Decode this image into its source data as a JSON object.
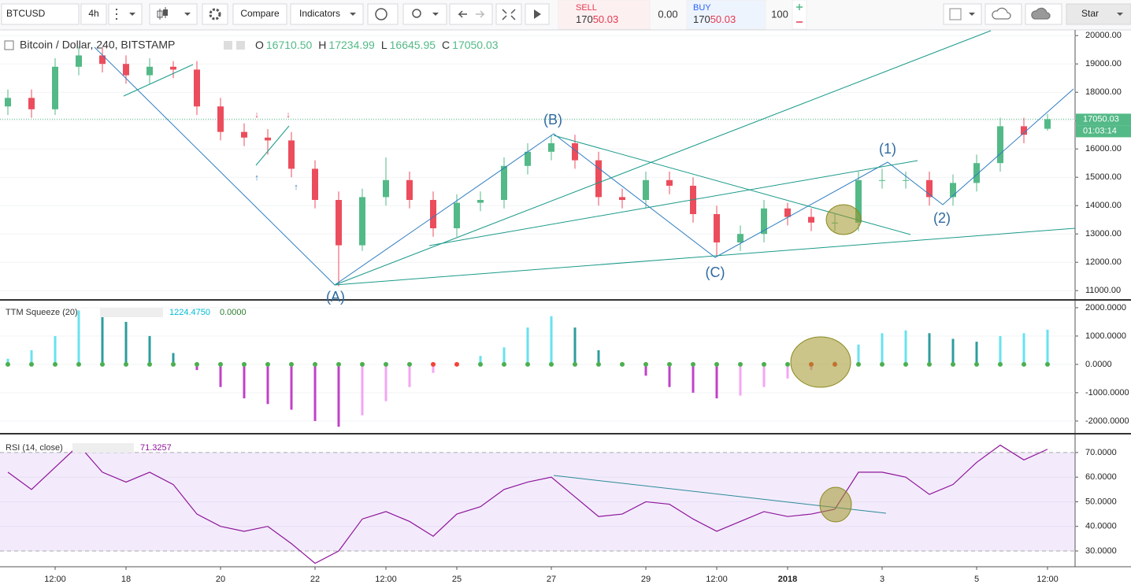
{
  "toolbar": {
    "symbol": "BTCUSD",
    "interval": "4h",
    "compare": "Compare",
    "indicators": "Indicators",
    "sell_label": "SELL",
    "sell_price": [
      "170",
      "50.03"
    ],
    "spread": "0.00",
    "buy_label": "BUY",
    "buy_price": [
      "170",
      "50.03"
    ],
    "quantity": "100",
    "star": "Star"
  },
  "chart_data": [
    {
      "type": "candlestick",
      "title": "Bitcoin / Dollar, 240, BITSTAMP",
      "ohlc_labels": [
        "O",
        "H",
        "L",
        "C"
      ],
      "ohlc_values": [
        "16710.50",
        "17234.99",
        "16645.95",
        "17050.03"
      ],
      "last_price_label": "17050.03",
      "countdown": "01:03:14",
      "annotations": [
        "(A)",
        "(B)",
        "(C)",
        "(1)",
        "(2)"
      ],
      "up_color": "#53b987",
      "down_color": "#eb4d5c",
      "open": [
        17500,
        17800,
        17400,
        18900,
        19300,
        19000,
        18600,
        18900,
        18800,
        17500,
        16600,
        16400,
        16300,
        15300,
        14200,
        12600,
        14300,
        14900,
        14200,
        13200,
        14100,
        14200,
        15400,
        15900,
        16200,
        15600,
        14300,
        14200,
        14900,
        14700,
        13700,
        12700,
        13000,
        13900,
        13600,
        13400,
        13400,
        14900,
        14900,
        14900,
        14300,
        14800,
        15500,
        16800,
        16710.5
      ],
      "high": [
        18100,
        18100,
        19200,
        19600,
        19600,
        19300,
        19200,
        19100,
        19100,
        17800,
        16900,
        16700,
        16600,
        15600,
        14500,
        14600,
        15700,
        15200,
        14500,
        14400,
        14500,
        15700,
        16200,
        16500,
        16500,
        15900,
        14600,
        15200,
        15200,
        15000,
        14000,
        13300,
        14200,
        14100,
        13900,
        13700,
        15200,
        15300,
        15200,
        15200,
        15100,
        15800,
        17100,
        17100,
        17234.99
      ],
      "low": [
        17200,
        17100,
        17200,
        18600,
        18700,
        18300,
        18300,
        18500,
        17200,
        16300,
        16100,
        15800,
        15000,
        13900,
        11150,
        12400,
        14000,
        13900,
        12900,
        12900,
        13800,
        13900,
        15100,
        15600,
        15300,
        14000,
        13900,
        13900,
        14400,
        13400,
        12200,
        12400,
        12700,
        13300,
        13100,
        13100,
        13100,
        14600,
        14600,
        14000,
        14000,
        14500,
        15200,
        16200,
        16645.95
      ],
      "close": [
        17800,
        17400,
        18900,
        19300,
        19000,
        18600,
        18900,
        18800,
        17500,
        16600,
        16400,
        16300,
        15300,
        14200,
        12600,
        14300,
        14900,
        14200,
        13200,
        14100,
        14200,
        15400,
        15900,
        16200,
        15600,
        14300,
        14200,
        14900,
        14700,
        13700,
        12700,
        13000,
        13900,
        13600,
        13400,
        13400,
        14900,
        14900,
        14900,
        14300,
        14800,
        15500,
        16800,
        16500,
        17050.03
      ],
      "ylim": [
        10700,
        20200
      ],
      "yticks": [
        {
          "value": 11000,
          "label": "11000.00"
        },
        {
          "value": 12000,
          "label": "12000.00"
        },
        {
          "value": 13000,
          "label": "13000.00"
        },
        {
          "value": 14000,
          "label": "14000.00"
        },
        {
          "value": 15000,
          "label": "15000.00"
        },
        {
          "value": 16000,
          "label": "16000.00"
        },
        {
          "value": 17000,
          "label": "17000.00"
        },
        {
          "value": 18000,
          "label": "18000.00"
        },
        {
          "value": 19000,
          "label": "19000.00"
        },
        {
          "value": 20000,
          "label": "20000.00"
        }
      ]
    },
    {
      "type": "histogram",
      "title": "TTM Squeeze (20)",
      "legend_values": [
        "1224.4750",
        "0.0000"
      ],
      "values": [
        200,
        500,
        1000,
        1900,
        1800,
        1500,
        1000,
        400,
        -200,
        -800,
        -1200,
        -1400,
        -1600,
        -2000,
        -2200,
        -1800,
        -1300,
        -800,
        -300,
        0,
        300,
        600,
        1300,
        1700,
        1300,
        500,
        0,
        -400,
        -800,
        -1000,
        -1200,
        -1100,
        -800,
        -500,
        -200,
        100,
        700,
        1100,
        1200,
        1100,
        900,
        800,
        1000,
        1100,
        1224.475
      ],
      "dot_colors": [
        "#4caf50",
        "#4caf50",
        "#4caf50",
        "#4caf50",
        "#4caf50",
        "#4caf50",
        "#4caf50",
        "#4caf50",
        "#4caf50",
        "#4caf50",
        "#4caf50",
        "#4caf50",
        "#4caf50",
        "#4caf50",
        "#4caf50",
        "#4caf50",
        "#4caf50",
        "#4caf50",
        "#f44336",
        "#f44336",
        "#4caf50",
        "#4caf50",
        "#4caf50",
        "#4caf50",
        "#4caf50",
        "#4caf50",
        "#4caf50",
        "#4caf50",
        "#4caf50",
        "#4caf50",
        "#4caf50",
        "#4caf50",
        "#4caf50",
        "#4caf50",
        "#f44336",
        "#f44336",
        "#4caf50",
        "#4caf50",
        "#4caf50",
        "#4caf50",
        "#4caf50",
        "#4caf50",
        "#4caf50",
        "#4caf50",
        "#4caf50"
      ],
      "ylim": [
        -2420,
        2220
      ],
      "yticks": [
        {
          "value": -2000,
          "label": "-2000.0000"
        },
        {
          "value": -1000,
          "label": "-1000.0000"
        },
        {
          "value": 0,
          "label": "0.0000"
        },
        {
          "value": 1000,
          "label": "1000.0000"
        },
        {
          "value": 2000,
          "label": "2000.0000"
        }
      ]
    },
    {
      "type": "line",
      "title": "RSI (14, close)",
      "legend_value": "71.3257",
      "color": "#8e1599",
      "values": [
        62,
        55,
        64,
        73,
        62,
        58,
        62,
        57,
        45,
        40,
        38,
        40,
        33,
        25,
        30,
        43,
        46,
        42,
        36,
        45,
        48,
        55,
        58,
        60,
        52,
        44,
        45,
        50,
        49,
        43,
        38,
        42,
        46,
        44,
        45,
        47,
        62,
        62,
        60,
        53,
        57,
        66,
        73,
        67,
        71.3257
      ],
      "band": [
        30,
        70
      ],
      "categories": [
        null,
        null,
        "12:00",
        null,
        null,
        "18",
        null,
        null,
        null,
        "20",
        null,
        null,
        null,
        "22",
        null,
        null,
        "12:00",
        null,
        null,
        "25",
        null,
        null,
        null,
        "27",
        null,
        null,
        null,
        "29",
        null,
        null,
        "12:00",
        null,
        null,
        "2018",
        null,
        null,
        null,
        "3",
        null,
        null,
        null,
        "5",
        null,
        null,
        "12:00"
      ],
      "ylim": [
        23.6,
        77
      ],
      "yticks": [
        {
          "value": 30,
          "label": "30.0000"
        },
        {
          "value": 40,
          "label": "40.0000"
        },
        {
          "value": 50,
          "label": "50.0000"
        },
        {
          "value": 60,
          "label": "60.0000"
        },
        {
          "value": 70,
          "label": "70.0000"
        }
      ]
    }
  ]
}
